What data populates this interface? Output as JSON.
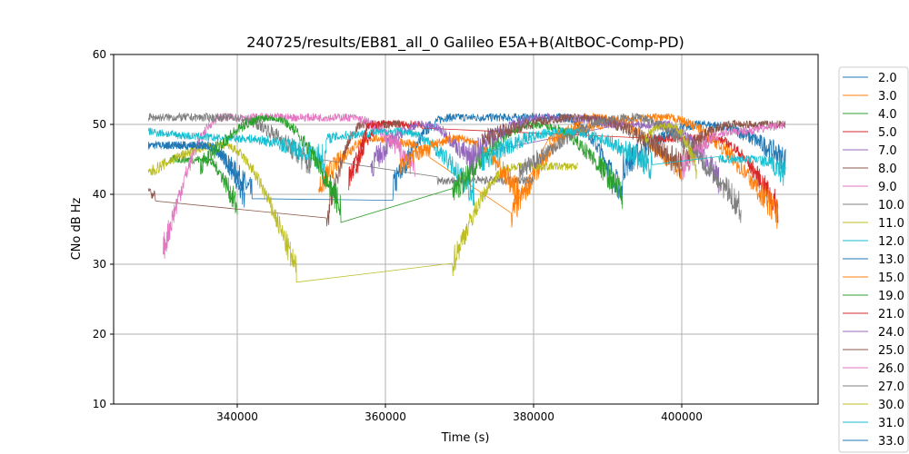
{
  "chart_data": {
    "type": "line",
    "title": "240725/results/EB81_all_0 Galileo E5A+B(AltBOC-Comp-PD)",
    "xlabel": "Time (s)",
    "ylabel": "CNo dB Hz",
    "xlim": [
      323313,
      418405
    ],
    "ylim": [
      10,
      60
    ],
    "xticks": [
      340000,
      360000,
      380000,
      400000
    ],
    "xtick_labels": [
      "340000",
      "360000",
      "380000",
      "400000"
    ],
    "yticks": [
      10,
      20,
      30,
      40,
      50,
      60
    ],
    "ytick_labels": [
      "10",
      "20",
      "30",
      "40",
      "50",
      "60"
    ],
    "grid": true,
    "legend_placement": "outside-right",
    "segment_format": "[t_start, t_end, cno_start, cno_peak, cno_end]",
    "series": [
      {
        "name": "2.0",
        "color": "#1f77b4",
        "segments": [
          [
            328000,
            342000,
            47,
            47,
            40
          ],
          [
            361000,
            376000,
            41,
            51,
            51
          ],
          [
            376000,
            392000,
            51,
            51,
            40
          ],
          [
            392000,
            414000,
            44,
            50,
            45
          ]
        ]
      },
      {
        "name": "3.0",
        "color": "#ff7f0e",
        "segments": [
          [
            351000,
            366000,
            41,
            48,
            46
          ],
          [
            377000,
            400000,
            37,
            51,
            43
          ]
        ]
      },
      {
        "name": "4.0",
        "color": "#2ca02c",
        "segments": [
          [
            331000,
            340000,
            45,
            45,
            38
          ]
        ]
      },
      {
        "name": "5.0",
        "color": "#d62728",
        "segments": [
          [
            355000,
            365000,
            42,
            50,
            50
          ],
          [
            395000,
            413000,
            48,
            48,
            38
          ]
        ]
      },
      {
        "name": "7.0",
        "color": "#9467bd",
        "segments": [
          [
            358000,
            372000,
            44,
            50,
            44
          ],
          [
            390000,
            405000,
            50,
            50,
            42
          ]
        ]
      },
      {
        "name": "8.0",
        "color": "#8c564b",
        "segments": [
          [
            328000,
            329000,
            41,
            40,
            39
          ],
          [
            352000,
            362000,
            36,
            50,
            50
          ]
        ]
      },
      {
        "name": "9.0",
        "color": "#e377c2",
        "segments": [
          [
            330000,
            346000,
            32,
            51,
            51
          ],
          [
            346000,
            364000,
            51,
            51,
            44
          ]
        ]
      },
      {
        "name": "10.0",
        "color": "#7f7f7f",
        "segments": [
          [
            328000,
            350000,
            51,
            51,
            44
          ],
          [
            367000,
            380000,
            42,
            42,
            42
          ]
        ]
      },
      {
        "name": "11.0",
        "color": "#bcbd22",
        "segments": [
          [
            328000,
            348000,
            43,
            47,
            29
          ],
          [
            369000,
            386000,
            30,
            44,
            44
          ]
        ]
      },
      {
        "name": "12.0",
        "color": "#17becf",
        "segments": [
          [
            328000,
            352000,
            49,
            48,
            45
          ],
          [
            352000,
            372000,
            48,
            49,
            40
          ]
        ]
      },
      {
        "name": "13.0",
        "color": "#1f77b4",
        "segments": [
          [
            330000,
            341000,
            47,
            47,
            40
          ]
        ]
      },
      {
        "name": "15.0",
        "color": "#ff7f0e",
        "segments": [
          [
            362000,
            378000,
            44,
            48,
            40
          ],
          [
            382000,
            413000,
            48,
            51,
            37
          ]
        ]
      },
      {
        "name": "19.0",
        "color": "#2ca02c",
        "segments": [
          [
            335000,
            354000,
            44,
            51,
            38
          ],
          [
            369000,
            392000,
            40,
            50,
            40
          ]
        ]
      },
      {
        "name": "21.0",
        "color": "#d62728",
        "segments": [
          [
            356000,
            360000,
            42,
            50,
            50
          ]
        ]
      },
      {
        "name": "24.0",
        "color": "#9467bd",
        "segments": [
          [
            371000,
            392000,
            45,
            51,
            50
          ]
        ]
      },
      {
        "name": "25.0",
        "color": "#8c564b",
        "segments": [
          [
            373000,
            400000,
            48,
            51,
            44
          ],
          [
            400000,
            414000,
            45,
            50,
            50
          ]
        ]
      },
      {
        "name": "26.0",
        "color": "#e377c2",
        "segments": [
          [
            400000,
            414000,
            44,
            49,
            50
          ]
        ]
      },
      {
        "name": "27.0",
        "color": "#7f7f7f",
        "segments": [
          [
            378000,
            408000,
            43,
            51,
            38
          ]
        ]
      },
      {
        "name": "30.0",
        "color": "#bcbd22",
        "segments": [
          [
            395000,
            402000,
            48,
            50,
            44
          ]
        ]
      },
      {
        "name": "31.0",
        "color": "#17becf",
        "segments": [
          [
            373000,
            396000,
            45,
            49,
            44
          ],
          [
            405000,
            414000,
            45,
            45,
            43
          ]
        ]
      },
      {
        "name": "33.0",
        "color": "#1f77b4",
        "segments": []
      }
    ]
  }
}
